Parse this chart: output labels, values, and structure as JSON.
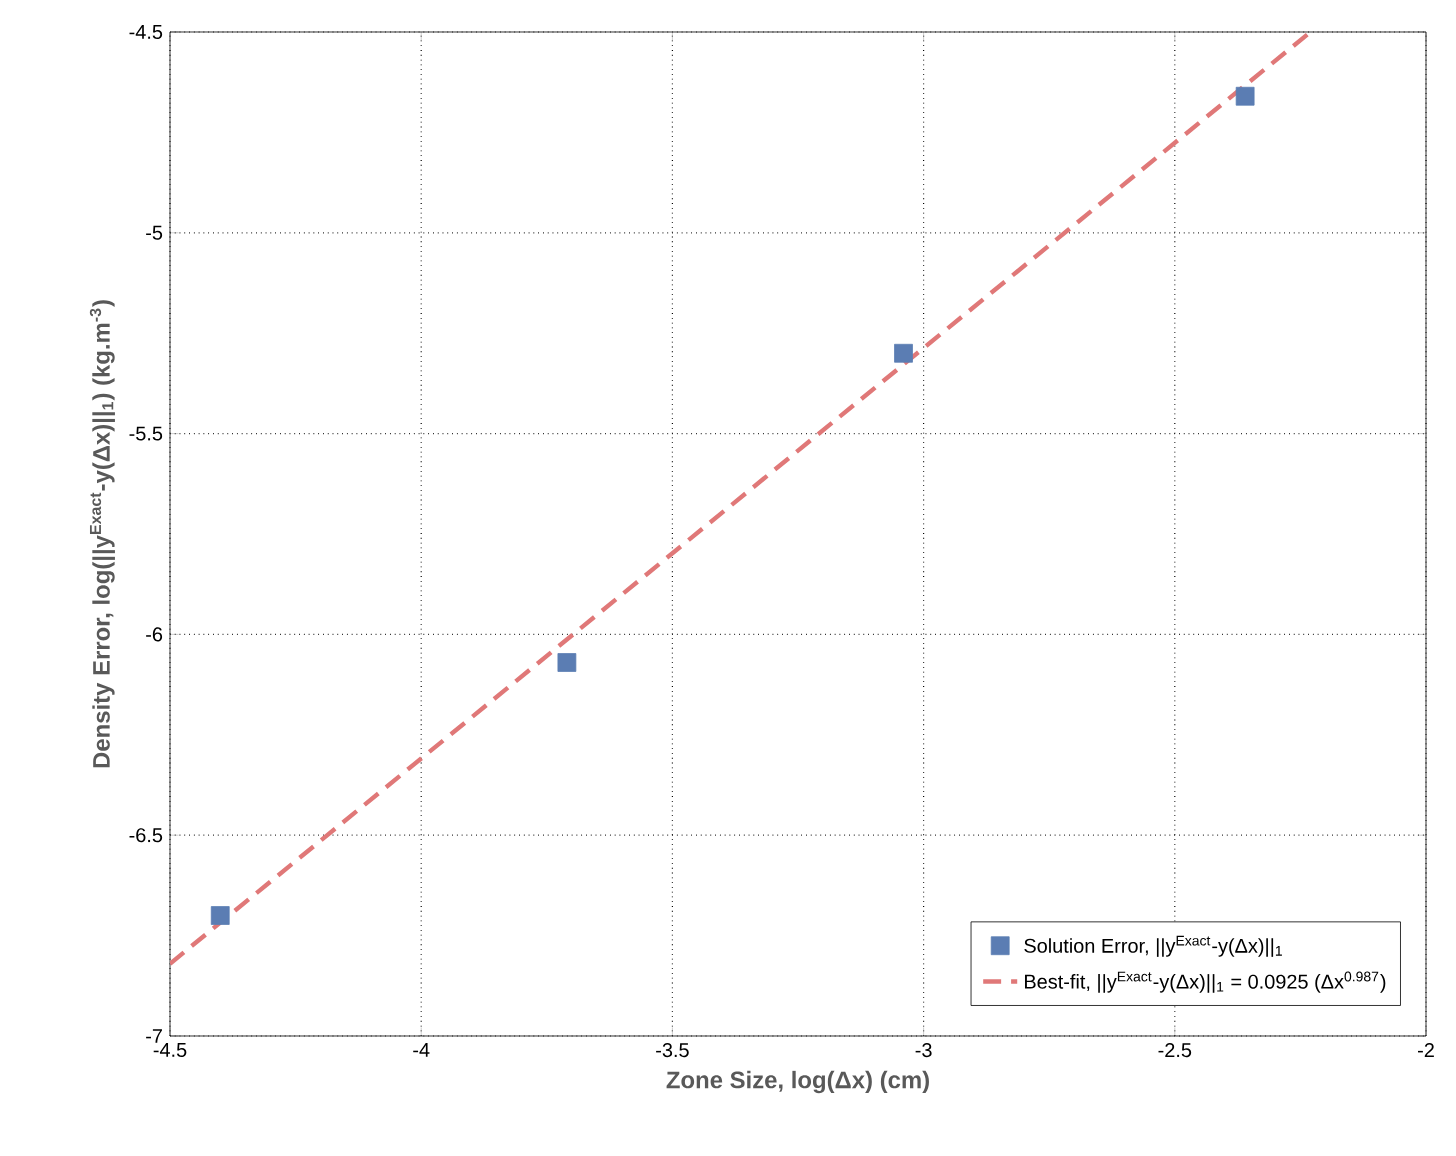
{
  "chart_data": {
    "type": "scatter",
    "xlabel": "Zone Size, log(Δx) (cm)",
    "ylabel": "Density Error, log(||y$^{Exact}$-y(Δx)||$_{1}$) (kg.m$^{-3}$)",
    "series": [
      {
        "name": "Solution Error, ||y$^{Exact}$-y(Δx)||$_{1}$",
        "color": "#5b7db3",
        "marker": "square",
        "x": [
          -4.4,
          -3.71,
          -3.04,
          -2.36
        ],
        "values": [
          -6.7,
          -6.07,
          -5.3,
          -4.66
        ]
      },
      {
        "name": "Best-fit, ||y$^{Exact}$-y(Δx)||$_{1}$ = 0.0925 (Δx$^{0.987}$)",
        "type": "line",
        "color": "#e07878",
        "line_style": "dashed",
        "marker": "none",
        "x": [
          -4.5,
          -2.23
        ],
        "values": [
          -6.82,
          -4.5
        ]
      }
    ],
    "xlim": [
      -4.5,
      -2
    ],
    "ylim": [
      -7,
      -4.5
    ],
    "xticks": [
      -4.5,
      -4,
      -3.5,
      -3,
      -2.5,
      -2
    ],
    "yticks": [
      -7,
      -6.5,
      -6,
      -5.5,
      -5,
      -4.5
    ],
    "grid": true,
    "legend": "bottom right"
  }
}
